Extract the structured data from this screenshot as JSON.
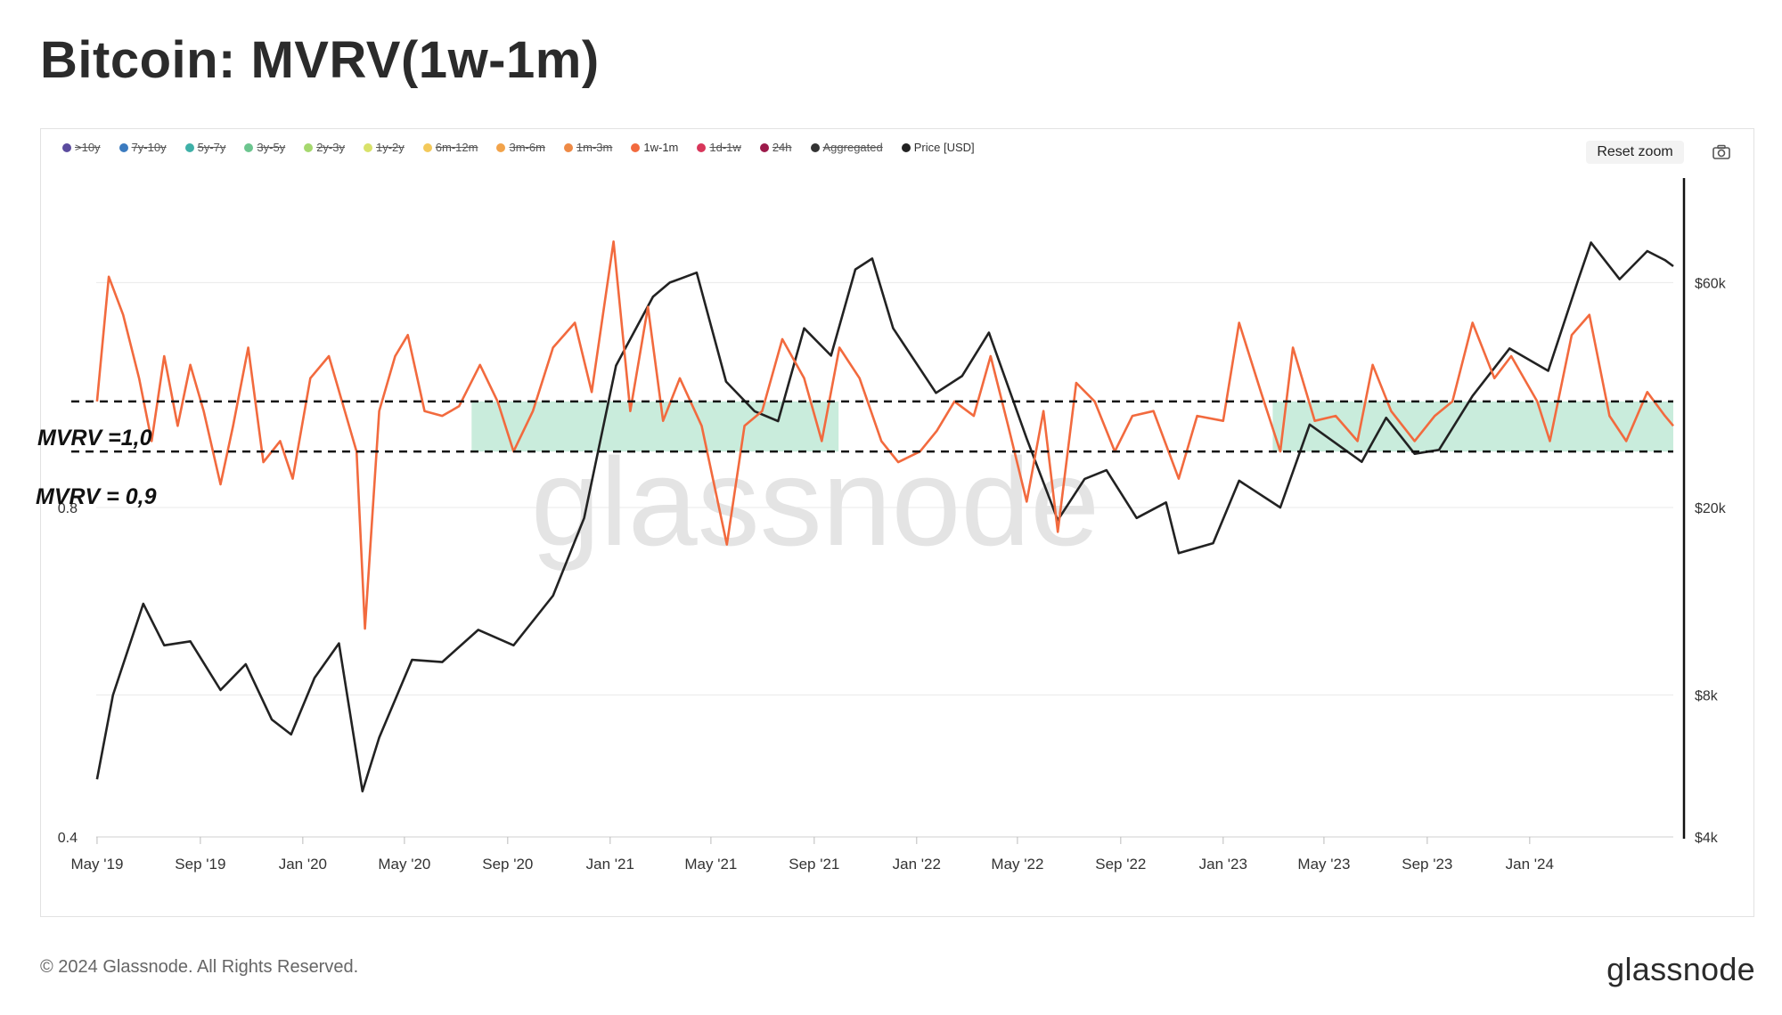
{
  "title": "Bitcoin: MVRV(1w-1m)",
  "legend": [
    {
      "label": ">10y",
      "color": "#5b4b9e",
      "active": false
    },
    {
      "label": "7y-10y",
      "color": "#3b7bbf",
      "active": false
    },
    {
      "label": "5y-7y",
      "color": "#3fb0a8",
      "active": false
    },
    {
      "label": "3y-5y",
      "color": "#6cc58f",
      "active": false
    },
    {
      "label": "2y-3y",
      "color": "#a6d86e",
      "active": false
    },
    {
      "label": "1y-2y",
      "color": "#d9e26a",
      "active": false
    },
    {
      "label": "6m-12m",
      "color": "#f3c95a",
      "active": false
    },
    {
      "label": "3m-6m",
      "color": "#f2a34a",
      "active": false
    },
    {
      "label": "1m-3m",
      "color": "#ee8a45",
      "active": false
    },
    {
      "label": "1w-1m",
      "color": "#f26a3e",
      "active": true
    },
    {
      "label": "1d-1w",
      "color": "#d8365a",
      "active": false
    },
    {
      "label": "24h",
      "color": "#9c1a4a",
      "active": false
    },
    {
      "label": "Aggregated",
      "color": "#333333",
      "active": false
    },
    {
      "label": "Price [USD]",
      "color": "#222222",
      "active": true
    }
  ],
  "reset_zoom_label": "Reset zoom",
  "camera_icon": "camera-icon",
  "watermark": "glassnode",
  "annotations": {
    "upper_line": "MVRV =1,0",
    "lower_line": "MVRV = 0,9"
  },
  "footer": {
    "copyright": "© 2024 Glassnode. All Rights Reserved.",
    "brand": "glassnode"
  },
  "colors": {
    "mvrv_line": "#f26a3e",
    "price_line": "#222222",
    "band_fill": "#bfe9d6",
    "grid": "#e9e9e9"
  },
  "chart_data": {
    "type": "line",
    "x_ticks": [
      "May '19",
      "Sep '19",
      "Jan '20",
      "May '20",
      "Sep '20",
      "Jan '21",
      "May '21",
      "Sep '21",
      "Jan '22",
      "May '22",
      "Sep '22",
      "Jan '23",
      "May '23",
      "Sep '23",
      "Jan '24"
    ],
    "x_tick_dates": [
      "2019-05-01",
      "2019-09-01",
      "2020-01-01",
      "2020-05-01",
      "2020-09-01",
      "2021-01-01",
      "2021-05-01",
      "2021-09-01",
      "2022-01-01",
      "2022-05-01",
      "2022-09-01",
      "2023-01-01",
      "2023-05-01",
      "2023-09-01",
      "2024-01-01"
    ],
    "x_range": [
      "2019-04-30",
      "2024-06-20"
    ],
    "left_axis": {
      "ticks": [
        "0.8",
        "0.4"
      ],
      "tick_values": [
        0.8,
        0.4
      ],
      "range": [
        0.4,
        1.6
      ],
      "scale": "log"
    },
    "right_axis": {
      "ticks": [
        "$60k",
        "$20k",
        "$8k",
        "$4k"
      ],
      "tick_values": [
        60000,
        20000,
        8000,
        4000
      ],
      "range": [
        4000,
        100000
      ],
      "scale": "log"
    },
    "reference_lines": [
      {
        "label": "MVRV =1,0",
        "value": 1.0
      },
      {
        "label": "MVRV = 0,9",
        "value": 0.9
      }
    ],
    "shaded_periods": [
      {
        "start": "2020-07-20",
        "end": "2021-09-30",
        "low": 0.9,
        "high": 1.0
      },
      {
        "start": "2023-03-01",
        "end": "2024-06-20",
        "low": 0.9,
        "high": 1.0
      }
    ],
    "series": [
      {
        "name": "1w-1m",
        "axis": "left",
        "points": [
          [
            "2019-05-01",
            1.0
          ],
          [
            "2019-05-15",
            1.3
          ],
          [
            "2019-06-01",
            1.2
          ],
          [
            "2019-06-20",
            1.05
          ],
          [
            "2019-07-05",
            0.92
          ],
          [
            "2019-07-20",
            1.1
          ],
          [
            "2019-08-05",
            0.95
          ],
          [
            "2019-08-20",
            1.08
          ],
          [
            "2019-09-05",
            0.98
          ],
          [
            "2019-09-25",
            0.84
          ],
          [
            "2019-10-10",
            0.95
          ],
          [
            "2019-10-28",
            1.12
          ],
          [
            "2019-11-15",
            0.88
          ],
          [
            "2019-12-05",
            0.92
          ],
          [
            "2019-12-20",
            0.85
          ],
          [
            "2020-01-10",
            1.05
          ],
          [
            "2020-02-01",
            1.1
          ],
          [
            "2020-02-20",
            0.98
          ],
          [
            "2020-03-05",
            0.9
          ],
          [
            "2020-03-15",
            0.62
          ],
          [
            "2020-04-01",
            0.98
          ],
          [
            "2020-04-20",
            1.1
          ],
          [
            "2020-05-05",
            1.15
          ],
          [
            "2020-05-25",
            0.98
          ],
          [
            "2020-06-15",
            0.97
          ],
          [
            "2020-07-05",
            0.99
          ],
          [
            "2020-07-30",
            1.08
          ],
          [
            "2020-08-20",
            1.0
          ],
          [
            "2020-09-08",
            0.9
          ],
          [
            "2020-10-01",
            0.98
          ],
          [
            "2020-10-25",
            1.12
          ],
          [
            "2020-11-20",
            1.18
          ],
          [
            "2020-12-10",
            1.02
          ],
          [
            "2021-01-05",
            1.4
          ],
          [
            "2021-01-25",
            0.98
          ],
          [
            "2021-02-15",
            1.22
          ],
          [
            "2021-03-05",
            0.96
          ],
          [
            "2021-03-25",
            1.05
          ],
          [
            "2021-04-20",
            0.95
          ],
          [
            "2021-05-20",
            0.74
          ],
          [
            "2021-06-10",
            0.95
          ],
          [
            "2021-07-01",
            0.98
          ],
          [
            "2021-07-25",
            1.14
          ],
          [
            "2021-08-20",
            1.05
          ],
          [
            "2021-09-10",
            0.92
          ],
          [
            "2021-10-01",
            1.12
          ],
          [
            "2021-10-25",
            1.05
          ],
          [
            "2021-11-20",
            0.92
          ],
          [
            "2021-12-10",
            0.88
          ],
          [
            "2022-01-05",
            0.9
          ],
          [
            "2022-01-25",
            0.94
          ],
          [
            "2022-02-15",
            1.0
          ],
          [
            "2022-03-10",
            0.97
          ],
          [
            "2022-03-30",
            1.1
          ],
          [
            "2022-04-20",
            0.95
          ],
          [
            "2022-05-12",
            0.81
          ],
          [
            "2022-06-01",
            0.98
          ],
          [
            "2022-06-18",
            0.76
          ],
          [
            "2022-07-10",
            1.04
          ],
          [
            "2022-08-01",
            1.0
          ],
          [
            "2022-08-25",
            0.9
          ],
          [
            "2022-09-15",
            0.97
          ],
          [
            "2022-10-10",
            0.98
          ],
          [
            "2022-11-09",
            0.85
          ],
          [
            "2022-12-01",
            0.97
          ],
          [
            "2023-01-01",
            0.96
          ],
          [
            "2023-01-20",
            1.18
          ],
          [
            "2023-02-15",
            1.02
          ],
          [
            "2023-03-10",
            0.9
          ],
          [
            "2023-03-25",
            1.12
          ],
          [
            "2023-04-20",
            0.96
          ],
          [
            "2023-05-15",
            0.97
          ],
          [
            "2023-06-10",
            0.92
          ],
          [
            "2023-06-28",
            1.08
          ],
          [
            "2023-07-20",
            0.98
          ],
          [
            "2023-08-17",
            0.92
          ],
          [
            "2023-09-10",
            0.97
          ],
          [
            "2023-10-01",
            1.0
          ],
          [
            "2023-10-25",
            1.18
          ],
          [
            "2023-11-20",
            1.05
          ],
          [
            "2023-12-10",
            1.1
          ],
          [
            "2024-01-10",
            1.0
          ],
          [
            "2024-01-25",
            0.92
          ],
          [
            "2024-02-20",
            1.15
          ],
          [
            "2024-03-12",
            1.2
          ],
          [
            "2024-04-05",
            0.97
          ],
          [
            "2024-04-25",
            0.92
          ],
          [
            "2024-05-20",
            1.02
          ],
          [
            "2024-06-10",
            0.97
          ],
          [
            "2024-06-20",
            0.95
          ]
        ]
      },
      {
        "name": "Price [USD]",
        "axis": "right",
        "points": [
          [
            "2019-05-01",
            5300
          ],
          [
            "2019-05-20",
            8000
          ],
          [
            "2019-06-25",
            12500
          ],
          [
            "2019-07-20",
            10200
          ],
          [
            "2019-08-20",
            10400
          ],
          [
            "2019-09-25",
            8200
          ],
          [
            "2019-10-25",
            9300
          ],
          [
            "2019-11-25",
            7100
          ],
          [
            "2019-12-18",
            6600
          ],
          [
            "2020-01-15",
            8700
          ],
          [
            "2020-02-13",
            10300
          ],
          [
            "2020-03-12",
            5000
          ],
          [
            "2020-04-01",
            6500
          ],
          [
            "2020-05-10",
            9500
          ],
          [
            "2020-06-15",
            9400
          ],
          [
            "2020-07-28",
            11000
          ],
          [
            "2020-09-08",
            10200
          ],
          [
            "2020-10-25",
            13000
          ],
          [
            "2020-12-01",
            19000
          ],
          [
            "2021-01-08",
            40000
          ],
          [
            "2021-02-21",
            56000
          ],
          [
            "2021-03-13",
            60000
          ],
          [
            "2021-04-14",
            63000
          ],
          [
            "2021-05-19",
            37000
          ],
          [
            "2021-06-22",
            32000
          ],
          [
            "2021-07-20",
            30500
          ],
          [
            "2021-08-20",
            48000
          ],
          [
            "2021-09-21",
            42000
          ],
          [
            "2021-10-20",
            64000
          ],
          [
            "2021-11-09",
            67500
          ],
          [
            "2021-12-04",
            48000
          ],
          [
            "2022-01-24",
            35000
          ],
          [
            "2022-02-24",
            38000
          ],
          [
            "2022-03-28",
            47000
          ],
          [
            "2022-05-12",
            28000
          ],
          [
            "2022-06-18",
            18800
          ],
          [
            "2022-07-20",
            23000
          ],
          [
            "2022-08-15",
            24000
          ],
          [
            "2022-09-20",
            19000
          ],
          [
            "2022-10-25",
            20500
          ],
          [
            "2022-11-09",
            16000
          ],
          [
            "2022-12-20",
            16800
          ],
          [
            "2023-01-20",
            22800
          ],
          [
            "2023-03-10",
            20000
          ],
          [
            "2023-04-14",
            30000
          ],
          [
            "2023-06-15",
            25000
          ],
          [
            "2023-07-14",
            31000
          ],
          [
            "2023-08-17",
            26000
          ],
          [
            "2023-09-15",
            26500
          ],
          [
            "2023-10-25",
            34500
          ],
          [
            "2023-12-08",
            43500
          ],
          [
            "2024-01-23",
            39000
          ],
          [
            "2024-02-28",
            61000
          ],
          [
            "2024-03-14",
            73000
          ],
          [
            "2024-04-17",
            61000
          ],
          [
            "2024-05-20",
            70000
          ],
          [
            "2024-06-10",
            67000
          ],
          [
            "2024-06-20",
            65000
          ]
        ]
      }
    ]
  }
}
